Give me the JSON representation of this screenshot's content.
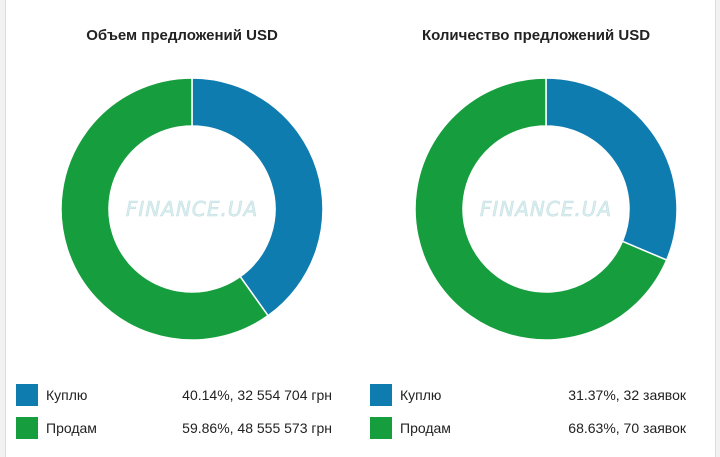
{
  "chart_data": [
    {
      "type": "pie",
      "title": "Объем предложений USD",
      "categories": [
        "Куплю",
        "Продам"
      ],
      "values": [
        40.14,
        59.86
      ],
      "value_labels": [
        "40.14%, 32 554 704 грн",
        "59.86%, 48 555 573 грн"
      ],
      "colors": [
        "#0f7cb0",
        "#169e3e"
      ],
      "legend_position": "bottom"
    },
    {
      "type": "pie",
      "title": "Количество предложений USD",
      "categories": [
        "Куплю",
        "Продам"
      ],
      "values": [
        31.37,
        68.63
      ],
      "value_labels": [
        "31.37%, 32 заявок",
        "68.63%, 70 заявок"
      ],
      "colors": [
        "#0f7cb0",
        "#169e3e"
      ],
      "legend_position": "bottom"
    }
  ],
  "watermark": "FINANCE.UA"
}
